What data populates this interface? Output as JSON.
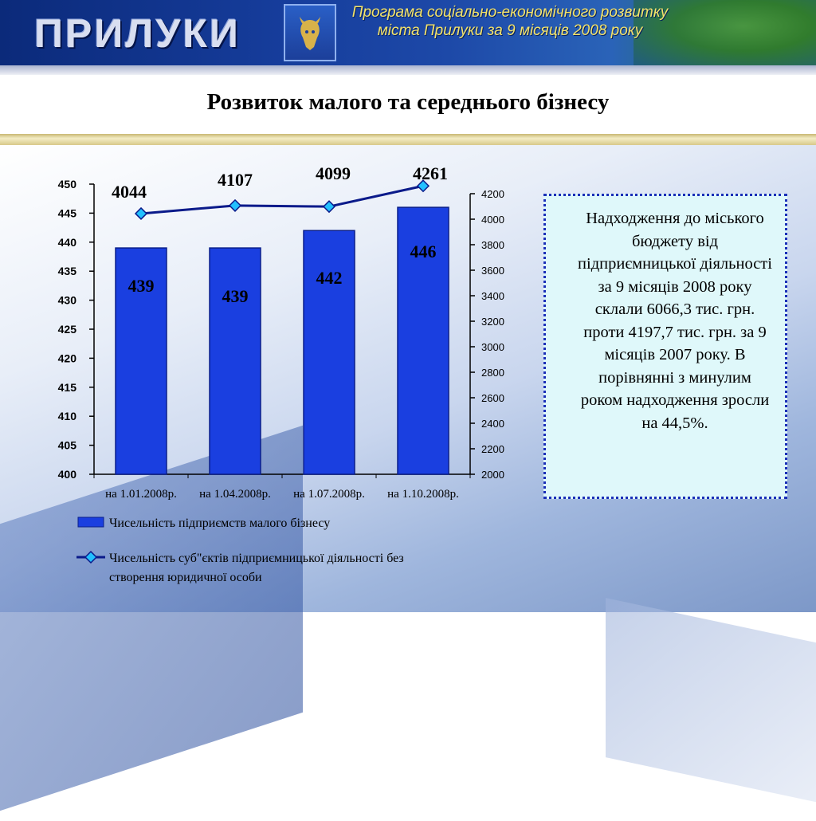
{
  "header": {
    "logo_text": "ПРИЛУКИ",
    "program_title": "Програма соціально-економічного розвитку міста Прилуки за 9 місяців 2008 року"
  },
  "slide": {
    "title": "Розвиток малого та середнього бізнесу"
  },
  "info_box": {
    "text": "Надходження до міського бюджету від підприємницької діяльності за 9 місяців 2008 року склали 6066,3 тис. грн. проти 4197,7 тис. грн. за 9 місяців 2007 року. В порівнянні з минулим роком надходження зросли на 44,5%."
  },
  "colors": {
    "bar_fill": "#1a3fe0",
    "bar_stroke": "#0a1f8a",
    "line": "#0a1a8a",
    "marker": "#22c0ff"
  },
  "chart_data": {
    "type": "bar+line",
    "categories": [
      "на 1.01.2008р.",
      "на 1.04.2008р.",
      "на 1.07.2008р.",
      "на 1.10.2008р."
    ],
    "series": [
      {
        "name": "Чисельність підприємств малого бізнесу",
        "type": "bar",
        "axis": "left",
        "values": [
          439,
          439,
          442,
          446
        ],
        "labels": [
          "439",
          "439",
          "442",
          "446"
        ]
      },
      {
        "name": "Чисельність суб\"єктів підприємницької діяльності без створення юридичної особи",
        "type": "line",
        "axis": "right",
        "values": [
          4044,
          4107,
          4099,
          4261
        ],
        "labels": [
          "4044",
          "4107",
          "4099",
          "4261"
        ]
      }
    ],
    "y_left": {
      "min": 400,
      "max": 450,
      "ticks": [
        "400",
        "405",
        "410",
        "415",
        "420",
        "425",
        "430",
        "435",
        "440",
        "445",
        "450"
      ]
    },
    "y_right": {
      "min": 2000,
      "max": 4200,
      "ticks": [
        "2000",
        "2200",
        "2400",
        "2600",
        "2800",
        "3000",
        "3200",
        "3400",
        "3600",
        "3800",
        "4000",
        "4200"
      ]
    },
    "legend_position": "bottom",
    "grid": false
  }
}
